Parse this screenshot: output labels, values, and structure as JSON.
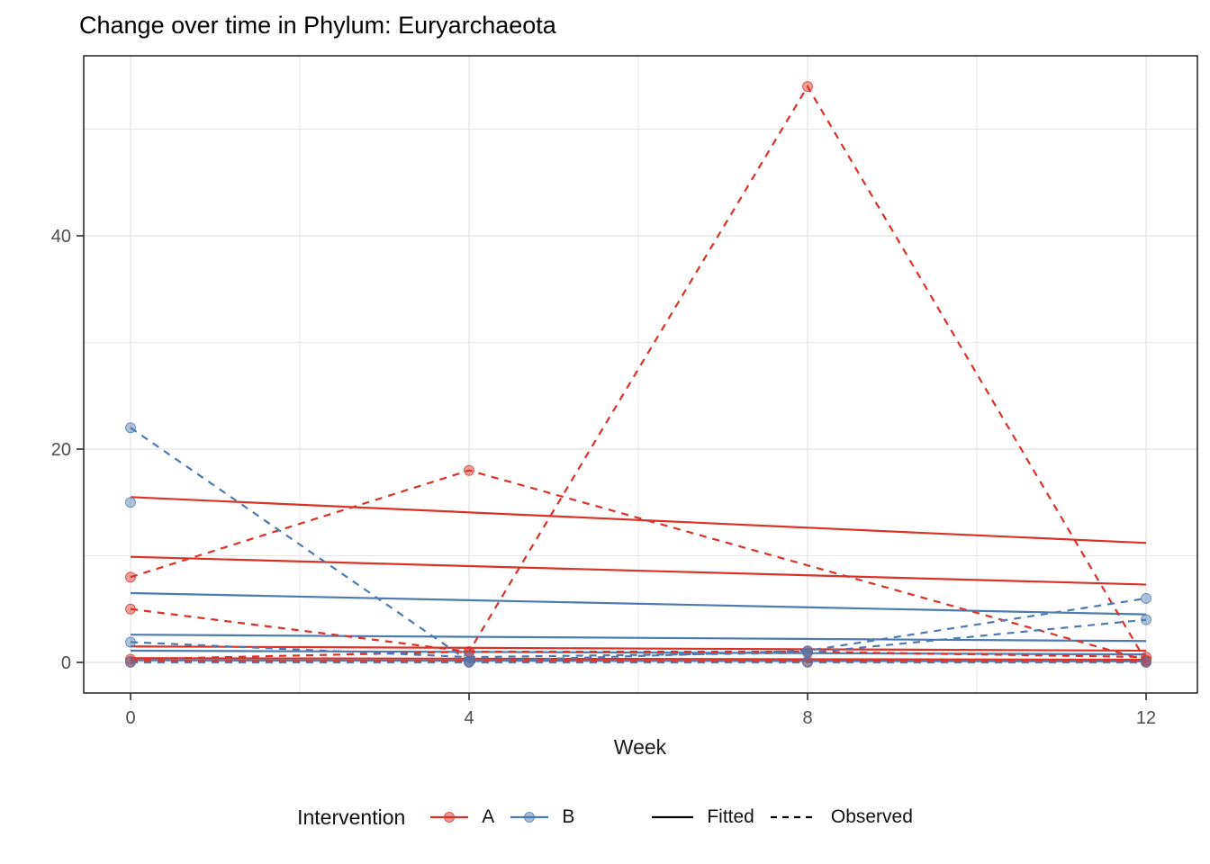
{
  "chart_data": {
    "type": "line",
    "title": "Change over time in Phylum: Euryarchaeota",
    "xlabel": "Week",
    "ylabel": "",
    "x_ticks": [
      0,
      4,
      8,
      12
    ],
    "y_ticks": [
      0,
      20,
      40
    ],
    "xlim": [
      -0.55,
      12.6
    ],
    "ylim": [
      -3,
      57
    ],
    "grid": {
      "major_x": [
        0,
        4,
        8,
        12
      ],
      "minor_x": [
        2,
        6,
        10
      ],
      "major_y": [
        0,
        20,
        40
      ],
      "minor_y": [
        10,
        30,
        50
      ]
    },
    "colors": {
      "A": "#DA3228",
      "B": "#4E79B1",
      "grid": "#E7E7E7",
      "panel_border": "#2E2E2E",
      "tick_text": "#4D4D4D",
      "text": "#111111",
      "linetype_key": "#000000"
    },
    "legend": {
      "title": "Intervention",
      "groups": [
        {
          "label": "A",
          "color_key": "A"
        },
        {
          "label": "B",
          "color_key": "B"
        }
      ],
      "linetypes": [
        {
          "label": "Fitted",
          "style": "solid"
        },
        {
          "label": "Observed",
          "style": "dashed"
        }
      ]
    },
    "series": [
      {
        "id": "A-fitted-1",
        "group": "A",
        "role": "fitted",
        "x": [
          0,
          12
        ],
        "y": [
          15.5,
          11.2
        ]
      },
      {
        "id": "A-fitted-2",
        "group": "A",
        "role": "fitted",
        "x": [
          0,
          12
        ],
        "y": [
          9.9,
          7.3
        ]
      },
      {
        "id": "A-fitted-3",
        "group": "A",
        "role": "fitted",
        "x": [
          0,
          12
        ],
        "y": [
          1.5,
          1.1
        ]
      },
      {
        "id": "A-fitted-4",
        "group": "A",
        "role": "fitted",
        "x": [
          0,
          12
        ],
        "y": [
          0.4,
          0.25
        ]
      },
      {
        "id": "B-fitted-1",
        "group": "B",
        "role": "fitted",
        "x": [
          0,
          12
        ],
        "y": [
          6.5,
          4.5
        ]
      },
      {
        "id": "B-fitted-2",
        "group": "B",
        "role": "fitted",
        "x": [
          0,
          12
        ],
        "y": [
          2.6,
          2.0
        ]
      },
      {
        "id": "B-fitted-3",
        "group": "B",
        "role": "fitted",
        "x": [
          0,
          12
        ],
        "y": [
          1.1,
          0.75
        ]
      },
      {
        "id": "B-fitted-4",
        "group": "B",
        "role": "fitted",
        "x": [
          0,
          12
        ],
        "y": [
          0.2,
          0.1
        ]
      },
      {
        "id": "A-observed-1",
        "group": "A",
        "role": "observed",
        "x": [
          0,
          4,
          12
        ],
        "y": [
          8,
          18,
          0.2
        ]
      },
      {
        "id": "A-observed-2",
        "group": "A",
        "role": "observed",
        "x": [
          0,
          4,
          8,
          12
        ],
        "y": [
          5,
          1,
          54,
          0.1
        ]
      },
      {
        "id": "A-observed-3",
        "group": "A",
        "role": "observed",
        "x": [
          0,
          4,
          8,
          12
        ],
        "y": [
          0.3,
          1.0,
          1.0,
          0.5
        ]
      },
      {
        "id": "A-observed-4",
        "group": "A",
        "role": "observed",
        "x": [
          0,
          4,
          8,
          12
        ],
        "y": [
          0.1,
          0.1,
          0.1,
          0.1
        ]
      },
      {
        "id": "B-observed-1",
        "group": "B",
        "role": "observed",
        "x": [
          0,
          4,
          8,
          12
        ],
        "y": [
          22,
          0.1,
          1.1,
          6
        ]
      },
      {
        "id": "B-observed-2",
        "group": "B",
        "role": "observed",
        "x": [
          0
        ],
        "y": [
          15
        ]
      },
      {
        "id": "B-observed-3",
        "group": "B",
        "role": "observed",
        "x": [
          0,
          4,
          8,
          12
        ],
        "y": [
          1.9,
          0.5,
          0.9,
          4
        ]
      },
      {
        "id": "B-observed-4",
        "group": "B",
        "role": "observed",
        "x": [
          0,
          4,
          8,
          12
        ],
        "y": [
          0,
          0,
          0,
          0
        ]
      }
    ]
  }
}
